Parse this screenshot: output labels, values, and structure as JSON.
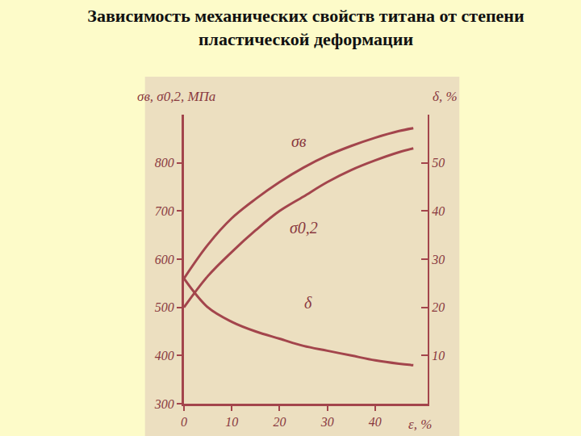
{
  "chart_data": {
    "type": "line",
    "title": "Зависимость механических свойств титана от степени пластической деформации",
    "x_label": "ε, %",
    "y_label": "σв, σ0,2, МПа",
    "y2_label": "δ, %",
    "x": [
      0,
      5,
      10,
      15,
      20,
      25,
      30,
      35,
      40,
      45,
      48
    ],
    "series": [
      {
        "name": "σв",
        "color": "#a3454c",
        "values": [
          560,
          630,
          685,
          725,
          760,
          790,
          815,
          835,
          852,
          866,
          872
        ]
      },
      {
        "name": "σ0,2",
        "color": "#a3454c",
        "values": [
          500,
          565,
          615,
          660,
          700,
          730,
          760,
          785,
          805,
          822,
          830
        ]
      },
      {
        "name": "δ",
        "color": "#a3454c",
        "axis": "y2",
        "values": [
          26,
          20,
          17,
          15,
          13.5,
          12,
          11,
          10,
          9,
          8.3,
          8
        ]
      }
    ],
    "xlim": [
      0,
      51
    ],
    "xticks": [
      0,
      10,
      20,
      30,
      40
    ],
    "ylim": [
      300,
      900
    ],
    "yticks": [
      300,
      400,
      500,
      600,
      700,
      800
    ],
    "y2lim": [
      0,
      60
    ],
    "y2ticks": [
      10,
      20,
      30,
      40,
      50
    ],
    "grid": false,
    "annotations": [
      {
        "text": "σв",
        "x": 24,
        "y": 845
      },
      {
        "text": "σ0,2",
        "x": 25,
        "y": 665
      },
      {
        "text": "δ",
        "x": 26,
        "y": 21,
        "axis": "y2"
      }
    ]
  }
}
